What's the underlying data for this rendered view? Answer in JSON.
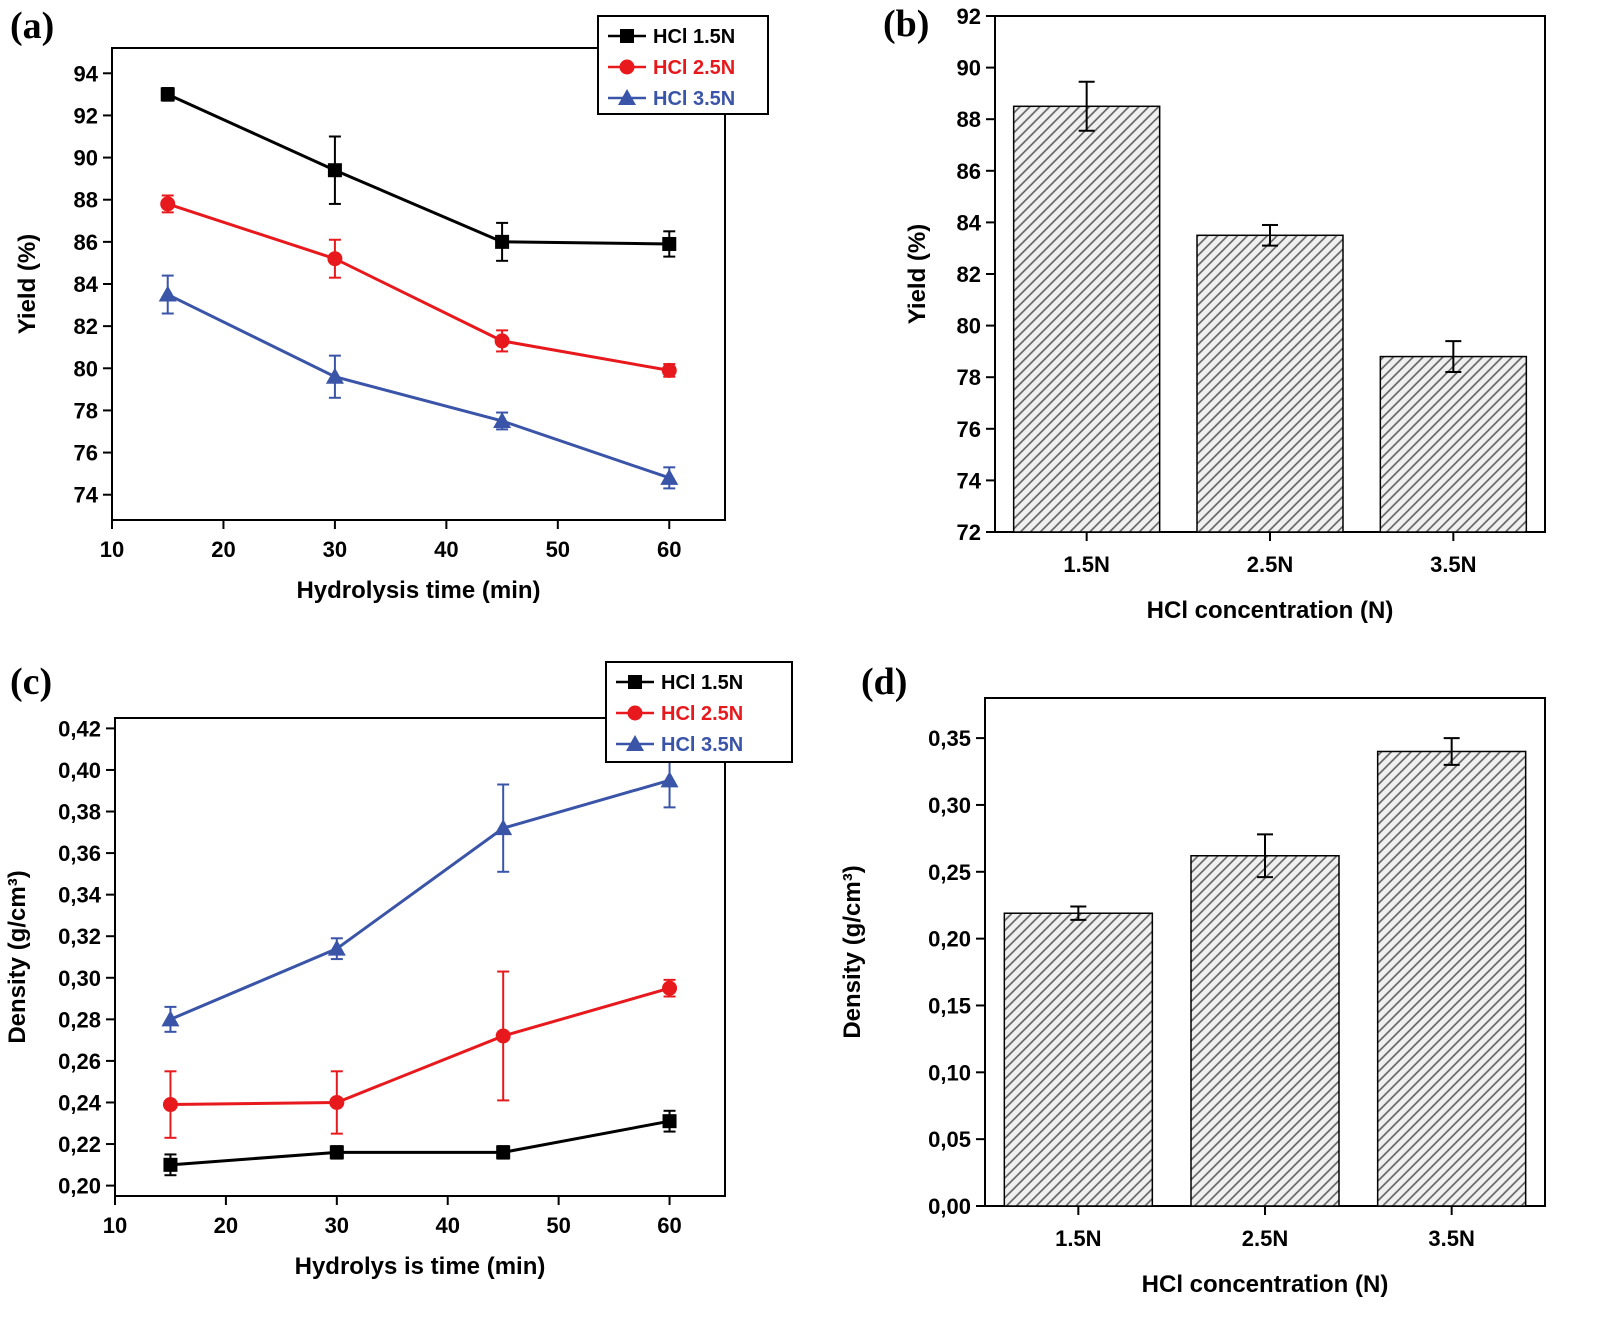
{
  "figure": {
    "panels": [
      {
        "id": "a",
        "tag": "(a)"
      },
      {
        "id": "b",
        "tag": "(b)"
      },
      {
        "id": "c",
        "tag": "(c)"
      },
      {
        "id": "d",
        "tag": "(d)"
      }
    ]
  },
  "colors": {
    "series1": "#000000",
    "series2": "#e8191d",
    "series3": "#3a54a8"
  },
  "chart_data": [
    {
      "id": "a",
      "type": "line",
      "title": "",
      "xlabel": "Hydrolysis time (min)",
      "ylabel": "Yield (%)",
      "xlim": [
        10,
        65
      ],
      "ylim": [
        72.8,
        95.2
      ],
      "xticks": [
        10,
        20,
        30,
        40,
        50,
        60
      ],
      "xtick_labels": [
        "10",
        "20",
        "30",
        "40",
        "50",
        "60"
      ],
      "yticks": [
        74,
        76,
        78,
        80,
        82,
        84,
        86,
        88,
        90,
        92,
        94
      ],
      "ytick_labels": [
        "74",
        "76",
        "78",
        "80",
        "82",
        "84",
        "86",
        "88",
        "90",
        "92",
        "94"
      ],
      "x": [
        15,
        30,
        45,
        60
      ],
      "legend_position": "top-right",
      "grid": false,
      "series": [
        {
          "name": "HCl 1.5N",
          "color": "#000000",
          "marker": "square",
          "values": [
            93.0,
            89.4,
            86.0,
            85.9
          ],
          "errors": [
            0.3,
            1.6,
            0.9,
            0.6
          ]
        },
        {
          "name": "HCl 2.5N",
          "color": "#e8191d",
          "marker": "circle",
          "values": [
            87.8,
            85.2,
            81.3,
            79.9
          ],
          "errors": [
            0.4,
            0.9,
            0.5,
            0.3
          ]
        },
        {
          "name": "HCl 3.5N",
          "color": "#3a54a8",
          "marker": "triangle",
          "values": [
            83.5,
            79.6,
            77.5,
            74.8
          ],
          "errors": [
            0.9,
            1.0,
            0.4,
            0.5
          ]
        }
      ]
    },
    {
      "id": "b",
      "type": "bar",
      "title": "",
      "xlabel": "HCl concentration (N)",
      "ylabel": "Yield (%)",
      "categories": [
        "1.5N",
        "2.5N",
        "3.5N"
      ],
      "values": [
        88.5,
        83.5,
        78.8
      ],
      "errors": [
        0.95,
        0.4,
        0.6
      ],
      "ylim": [
        72,
        92
      ],
      "yticks": [
        72,
        74,
        76,
        78,
        80,
        82,
        84,
        86,
        88,
        90,
        92
      ],
      "ytick_labels": [
        "72",
        "74",
        "76",
        "78",
        "80",
        "82",
        "84",
        "86",
        "88",
        "90",
        "92"
      ],
      "hatch": "diagonal",
      "grid": false
    },
    {
      "id": "c",
      "type": "line",
      "title": "",
      "xlabel": "Hydrolys is time (min)",
      "ylabel": "Density (g/cm³)",
      "xlim": [
        10,
        65
      ],
      "ylim": [
        0.195,
        0.425
      ],
      "xticks": [
        10,
        20,
        30,
        40,
        50,
        60
      ],
      "xtick_labels": [
        "10",
        "20",
        "30",
        "40",
        "50",
        "60"
      ],
      "yticks": [
        0.2,
        0.22,
        0.24,
        0.26,
        0.28,
        0.3,
        0.32,
        0.34,
        0.36,
        0.38,
        0.4,
        0.42
      ],
      "ytick_labels": [
        "0,20",
        "0,22",
        "0,24",
        "0,26",
        "0,28",
        "0,30",
        "0,32",
        "0,34",
        "0,36",
        "0,38",
        "0,40",
        "0,42"
      ],
      "x": [
        15,
        30,
        45,
        60
      ],
      "legend_position": "top-right",
      "grid": false,
      "series": [
        {
          "name": "HCl 1.5N",
          "color": "#000000",
          "marker": "square",
          "values": [
            0.21,
            0.216,
            0.216,
            0.231
          ],
          "errors": [
            0.005,
            0.003,
            0.003,
            0.005
          ]
        },
        {
          "name": "HCl 2.5N",
          "color": "#e8191d",
          "marker": "circle",
          "values": [
            0.239,
            0.24,
            0.272,
            0.295
          ],
          "errors": [
            0.016,
            0.015,
            0.031,
            0.004
          ]
        },
        {
          "name": "HCl 3.5N",
          "color": "#3a54a8",
          "marker": "triangle",
          "values": [
            0.28,
            0.314,
            0.372,
            0.395
          ],
          "errors": [
            0.006,
            0.005,
            0.021,
            0.013
          ]
        }
      ]
    },
    {
      "id": "d",
      "type": "bar",
      "title": "",
      "xlabel": "HCl concentration (N)",
      "ylabel": "Density (g/cm³)",
      "categories": [
        "1.5N",
        "2.5N",
        "3.5N"
      ],
      "values": [
        0.219,
        0.262,
        0.34
      ],
      "errors": [
        0.005,
        0.016,
        0.01
      ],
      "ylim": [
        0,
        0.38
      ],
      "yticks": [
        0.0,
        0.05,
        0.1,
        0.15,
        0.2,
        0.25,
        0.3,
        0.35
      ],
      "ytick_labels": [
        "0,00",
        "0,05",
        "0,10",
        "0,15",
        "0,20",
        "0,25",
        "0,30",
        "0,35"
      ],
      "hatch": "diagonal",
      "grid": false
    }
  ]
}
